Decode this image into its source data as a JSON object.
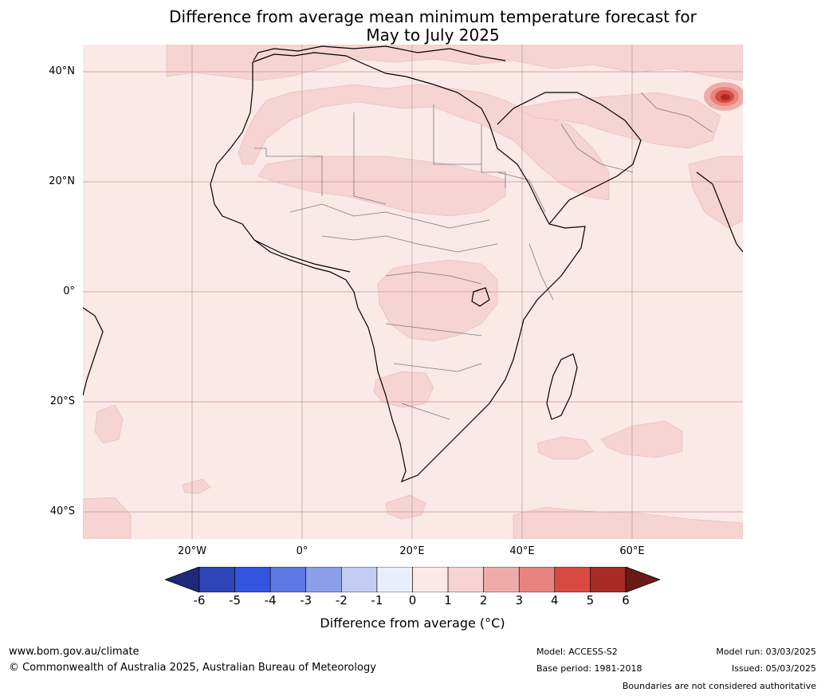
{
  "title": {
    "line1": "Difference from average mean minimum temperature forecast for",
    "line2": "May to July 2025"
  },
  "map": {
    "lat_labels": [
      "40°N",
      "20°N",
      "0°",
      "20°S",
      "40°S"
    ],
    "lon_labels": [
      "20°W",
      "0°",
      "20°E",
      "40°E",
      "60°E"
    ],
    "colors": {
      "ocean_base": "#fbe9e7",
      "anomaly_1_2": "#f6d4d1",
      "anomaly_3_6": "#a72b23",
      "coast": "#000000",
      "border": "#7a7a7a",
      "grid": "#d4a7a7"
    }
  },
  "colorbar": {
    "ticks": [
      "-6",
      "-5",
      "-4",
      "-3",
      "-2",
      "-1",
      "0",
      "1",
      "2",
      "3",
      "4",
      "5",
      "6"
    ],
    "colors": [
      "#1e2a78",
      "#2d45b6",
      "#3454e0",
      "#5b77e2",
      "#8a9fe8",
      "#c3ccf2",
      "#eaedfa",
      "#fbe9e7",
      "#f6d4d1",
      "#eeaca8",
      "#e8847e",
      "#d84a41",
      "#a72b23",
      "#6c1a16"
    ],
    "label": "Difference from average (°C)"
  },
  "footer": {
    "website": "www.bom.gov.au/climate",
    "copyright": "© Commonwealth of Australia 2025, Australian Bureau of Meteorology",
    "model": "Model: ACCESS-S2",
    "base_period": "Base period: 1981-2018",
    "model_run": "Model run: 03/03/2025",
    "issued": "Issued: 05/03/2025",
    "disclaimer": "Boundaries are not considered authoritative"
  }
}
